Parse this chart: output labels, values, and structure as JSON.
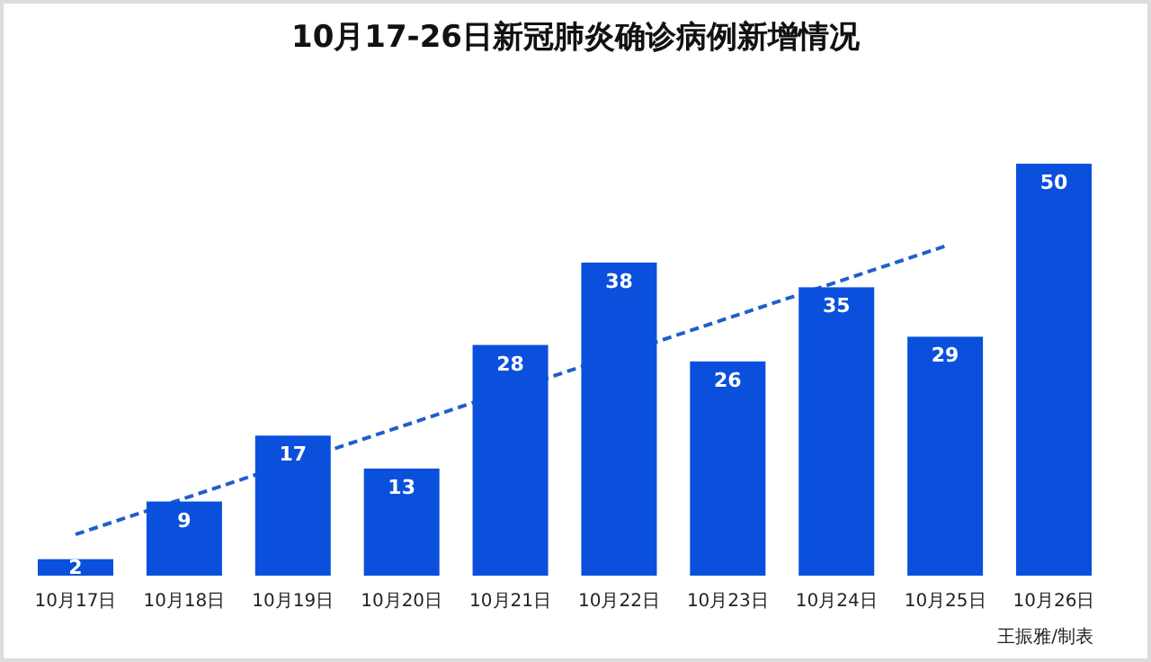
{
  "chart_data": {
    "type": "bar",
    "title": "10月17-26日新冠肺炎确诊病例新增情况",
    "categories": [
      "10月17日",
      "10月18日",
      "10月19日",
      "10月20日",
      "10月21日",
      "10月22日",
      "10月23日",
      "10月24日",
      "10月25日",
      "10月26日"
    ],
    "series": [
      {
        "color": "#0a50dc",
        "values": [
          2,
          9,
          17,
          13,
          28,
          38,
          26,
          35,
          29,
          50
        ],
        "value_labels": [
          "2",
          "9",
          "17",
          "13",
          "28",
          "38",
          "26",
          "35",
          "29",
          "50"
        ]
      },
      {
        "type": "line",
        "line_style": "dashed",
        "color": "#1f5fc8",
        "x": [
          "10月17日",
          "10月25日"
        ],
        "values": [
          5,
          40
        ]
      }
    ],
    "annotations": [
      "王振雅/制表"
    ]
  }
}
